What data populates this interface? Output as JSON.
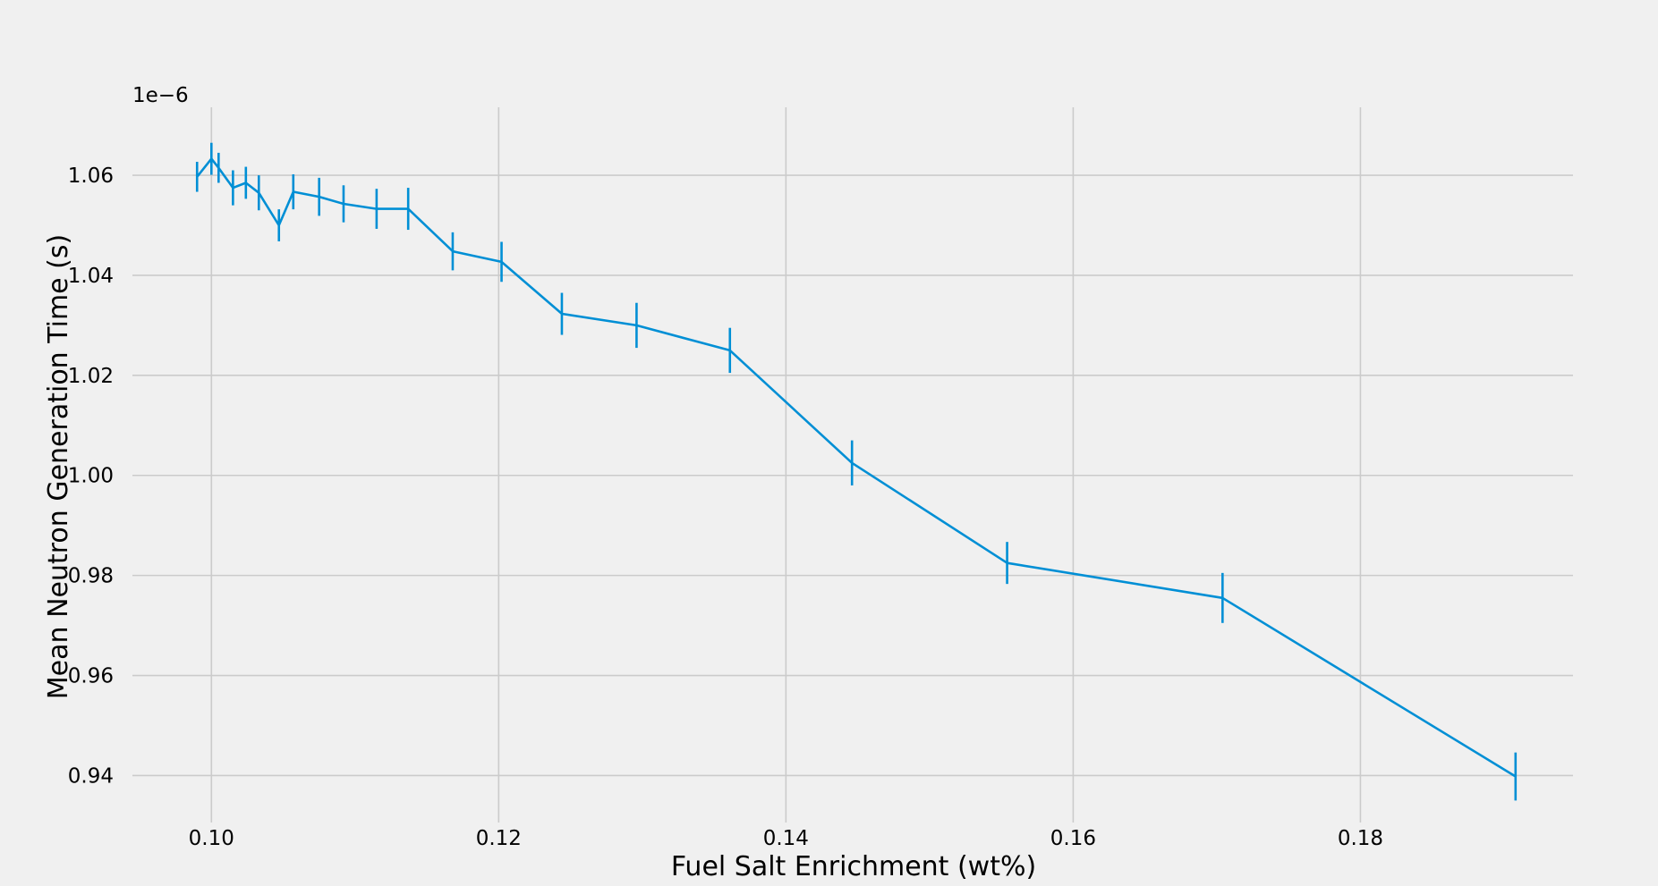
{
  "chart_data": {
    "type": "line",
    "title": "",
    "xlabel": "Fuel Salt Enrichment (wt%)",
    "ylabel": "Mean Neutron Generation Time (s)",
    "offset_label": "1e−6",
    "xlim": [
      0.0945,
      0.1948
    ],
    "ylim": [
      0.9306,
      1.0736
    ],
    "xticks": [
      0.1,
      0.12,
      0.14,
      0.16,
      0.18
    ],
    "xtick_labels": [
      "0.10",
      "0.12",
      "0.14",
      "0.16",
      "0.18"
    ],
    "yticks": [
      0.94,
      0.96,
      0.98,
      1.0,
      1.02,
      1.04,
      1.06
    ],
    "ytick_labels": [
      "0.94",
      "0.96",
      "0.98",
      "1.00",
      "1.02",
      "1.04",
      "1.06"
    ],
    "grid": true,
    "colors": {
      "line": "#008fd5",
      "background": "#f0f0f0",
      "grid": "#cbcbcb"
    },
    "series": [
      {
        "x": [
          0.099,
          0.1,
          0.1005,
          0.1015,
          0.1024,
          0.1033,
          0.1047,
          0.1057,
          0.1075,
          0.1092,
          0.1115,
          0.1137,
          0.1168,
          0.1202,
          0.1244,
          0.1296,
          0.1361,
          0.1446,
          0.1554,
          0.1704,
          0.1908
        ],
        "y": [
          1.0597,
          1.0633,
          1.0615,
          1.0575,
          1.0585,
          1.0565,
          1.05,
          1.0567,
          1.0557,
          1.0543,
          1.0533,
          1.0533,
          1.0448,
          1.0427,
          1.0323,
          1.03,
          1.025,
          1.0025,
          0.9825,
          0.9755,
          0.9398
        ],
        "yerr": [
          0.003,
          0.0032,
          0.003,
          0.0035,
          0.0032,
          0.0035,
          0.0032,
          0.0035,
          0.0038,
          0.0037,
          0.004,
          0.0042,
          0.0038,
          0.004,
          0.0042,
          0.0045,
          0.0045,
          0.0045,
          0.0042,
          0.005,
          0.0048
        ]
      }
    ]
  }
}
